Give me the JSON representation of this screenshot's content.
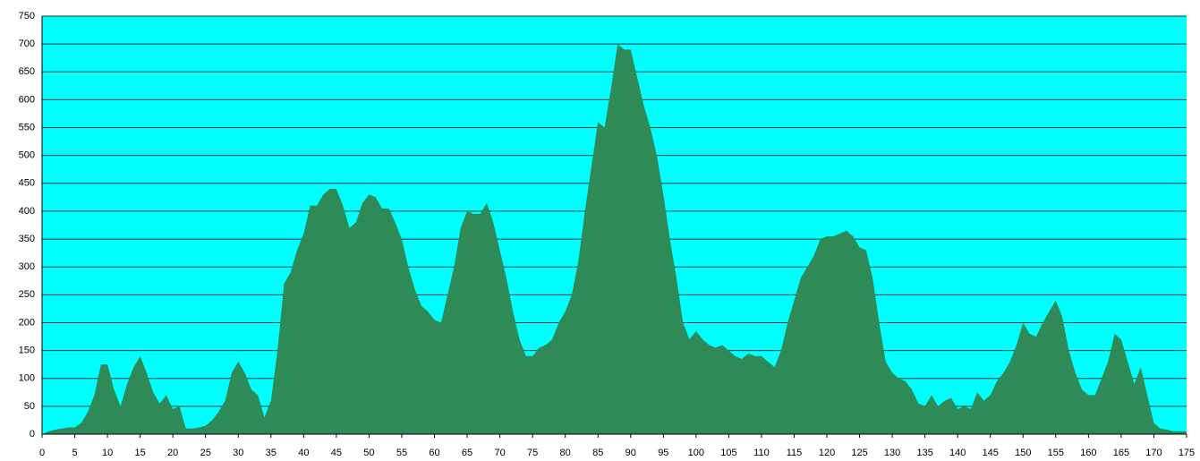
{
  "chart_data": {
    "type": "area",
    "x": [
      0,
      1,
      2,
      3,
      4,
      5,
      6,
      7,
      8,
      9,
      10,
      11,
      12,
      13,
      14,
      15,
      16,
      17,
      18,
      19,
      20,
      21,
      22,
      23,
      24,
      25,
      26,
      27,
      28,
      29,
      30,
      31,
      32,
      33,
      34,
      35,
      36,
      37,
      38,
      39,
      40,
      41,
      42,
      43,
      44,
      45,
      46,
      47,
      48,
      49,
      50,
      51,
      52,
      53,
      54,
      55,
      56,
      57,
      58,
      59,
      60,
      61,
      62,
      63,
      64,
      65,
      66,
      67,
      68,
      69,
      70,
      71,
      72,
      73,
      74,
      75,
      76,
      77,
      78,
      79,
      80,
      81,
      82,
      83,
      84,
      85,
      86,
      87,
      88,
      89,
      90,
      91,
      92,
      93,
      94,
      95,
      96,
      97,
      98,
      99,
      100,
      101,
      102,
      103,
      104,
      105,
      106,
      107,
      108,
      109,
      110,
      111,
      112,
      113,
      114,
      115,
      116,
      117,
      118,
      119,
      120,
      121,
      122,
      123,
      124,
      125,
      126,
      127,
      128,
      129,
      130,
      131,
      132,
      133,
      134,
      135,
      136,
      137,
      138,
      139,
      140,
      141,
      142,
      143,
      144,
      145,
      146,
      147,
      148,
      149,
      150,
      151,
      152,
      153,
      154,
      155,
      156,
      157,
      158,
      159,
      160,
      161,
      162,
      163,
      164,
      165,
      166,
      167,
      168,
      169,
      170,
      171,
      172,
      173,
      174,
      175
    ],
    "values": [
      0,
      5,
      8,
      10,
      12,
      12,
      20,
      40,
      70,
      125,
      125,
      80,
      50,
      90,
      120,
      140,
      110,
      75,
      55,
      70,
      45,
      50,
      10,
      10,
      12,
      15,
      25,
      40,
      60,
      110,
      130,
      110,
      80,
      70,
      30,
      60,
      150,
      270,
      290,
      330,
      360,
      410,
      410,
      430,
      440,
      440,
      410,
      370,
      380,
      415,
      430,
      425,
      405,
      405,
      380,
      350,
      300,
      260,
      230,
      220,
      205,
      200,
      250,
      300,
      370,
      400,
      395,
      395,
      415,
      380,
      330,
      280,
      220,
      170,
      140,
      140,
      155,
      160,
      170,
      200,
      220,
      250,
      310,
      400,
      480,
      560,
      550,
      620,
      700,
      690,
      690,
      640,
      590,
      550,
      500,
      430,
      350,
      280,
      200,
      170,
      185,
      170,
      160,
      155,
      160,
      150,
      140,
      135,
      145,
      140,
      140,
      130,
      120,
      150,
      200,
      240,
      280,
      300,
      320,
      350,
      355,
      355,
      360,
      365,
      355,
      335,
      330,
      280,
      200,
      130,
      110,
      100,
      95,
      80,
      55,
      50,
      70,
      50,
      60,
      65,
      45,
      50,
      45,
      75,
      60,
      70,
      95,
      110,
      130,
      160,
      200,
      180,
      175,
      200,
      220,
      240,
      210,
      150,
      110,
      80,
      70,
      70,
      100,
      130,
      180,
      170,
      130,
      90,
      120,
      70,
      20,
      10,
      8,
      5,
      5,
      5
    ],
    "color": "#2e8b57",
    "background": "#00ffff",
    "xlim": [
      0,
      175
    ],
    "xticks": [
      0,
      5,
      10,
      15,
      20,
      25,
      30,
      35,
      40,
      45,
      50,
      55,
      60,
      65,
      70,
      75,
      80,
      85,
      90,
      95,
      100,
      105,
      110,
      115,
      120,
      125,
      130,
      135,
      140,
      145,
      150,
      155,
      160,
      165,
      170,
      175
    ],
    "ylim": [
      0,
      750
    ],
    "yticks": [
      0,
      50,
      100,
      150,
      200,
      250,
      300,
      350,
      400,
      450,
      500,
      550,
      600,
      650,
      700,
      750
    ],
    "grid": true
  }
}
